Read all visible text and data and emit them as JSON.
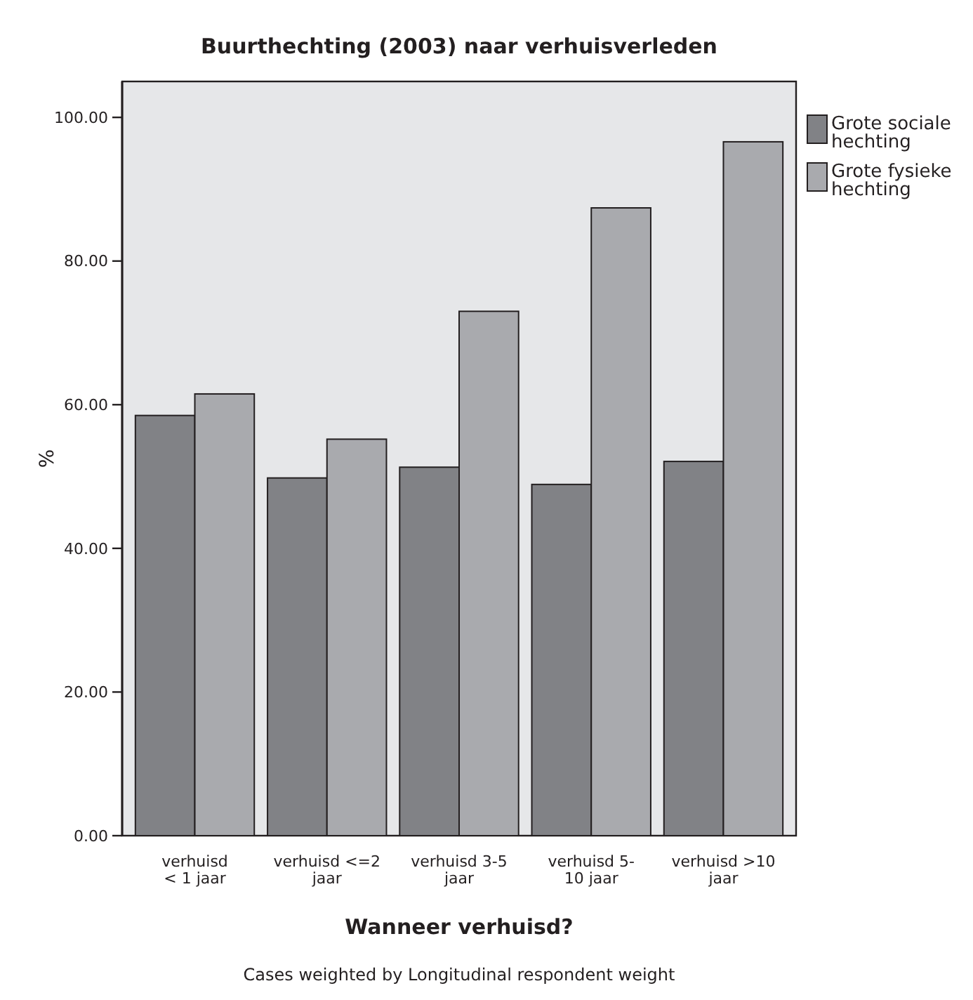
{
  "chart_data": {
    "type": "bar",
    "title": "Buurthechting (2003) naar verhuisverleden",
    "xlabel": "Wanneer verhuisd?",
    "ylabel": "%",
    "categories": [
      "verhuisd\n< 1 jaar",
      "verhuisd <=2\njaar",
      "verhuisd 3-5\njaar",
      "verhuisd 5-\n10 jaar",
      "verhuisd >10\njaar"
    ],
    "series": [
      {
        "name": "Grote sociale hechting",
        "color": "#818286",
        "values": [
          58.5,
          49.8,
          51.3,
          48.9,
          52.1
        ]
      },
      {
        "name": "Grote fysieke hechting",
        "color": "#a9aaae",
        "values": [
          61.5,
          55.2,
          73.0,
          87.4,
          96.6
        ]
      }
    ],
    "ylim": [
      0,
      105
    ],
    "yticks": [
      {
        "value": 0,
        "label": "0.00"
      },
      {
        "value": 20,
        "label": "20.00"
      },
      {
        "value": 40,
        "label": "40.00"
      },
      {
        "value": 60,
        "label": "60.00"
      },
      {
        "value": 80,
        "label": "80.00"
      },
      {
        "value": 100,
        "label": "100.00"
      }
    ],
    "legend": "right",
    "grid": false,
    "annotations": [
      "Cases weighted by Longitudinal respondent weight"
    ]
  }
}
